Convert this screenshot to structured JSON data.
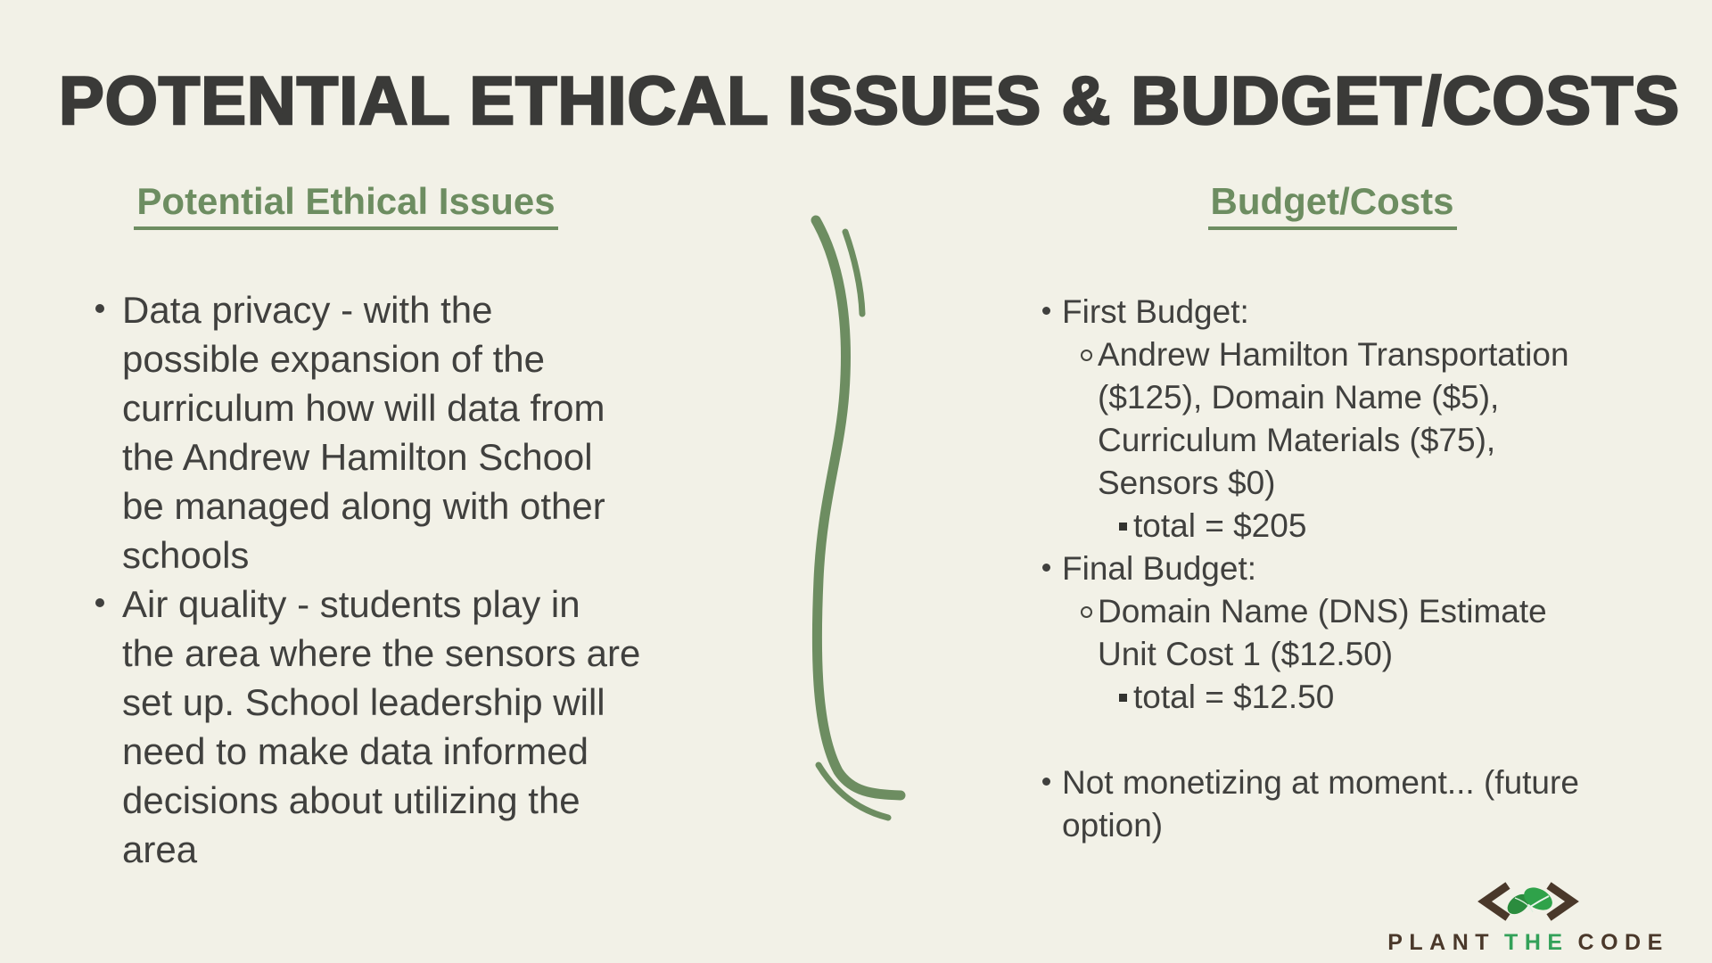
{
  "page": {
    "background": "#f2f1e7",
    "accent_green": "#6d8d61",
    "text_color": "#40403e",
    "title_color": "#3a3a38"
  },
  "title": "POTENTIAL ETHICAL ISSUES & BUDGET/COSTS",
  "left_column": {
    "heading": "Potential Ethical Issues",
    "bullets": [
      {
        "marker": "disc",
        "lines": [
          "Data privacy - with the",
          "possible expansion of the",
          "curriculum how will data from",
          "the Andrew Hamilton School",
          "be managed along with other",
          "schools"
        ]
      },
      {
        "marker": "disc",
        "lines": [
          "Air quality - students play in",
          "the area where the sensors are",
          "set up. School leadership will",
          "need to make data informed",
          "decisions about utilizing the",
          "area"
        ]
      }
    ]
  },
  "right_column": {
    "heading": "Budget/Costs",
    "items": [
      {
        "level": 1,
        "marker": "disc",
        "spacer_before": false,
        "lines": [
          "First Budget:"
        ]
      },
      {
        "level": 2,
        "marker": "circle",
        "spacer_before": false,
        "lines": [
          "Andrew Hamilton Transportation",
          "($125), Domain Name ($5),",
          "Curriculum Materials ($75),",
          "Sensors $0)"
        ]
      },
      {
        "level": 3,
        "marker": "square",
        "spacer_before": false,
        "lines": [
          "total = $205"
        ]
      },
      {
        "level": 1,
        "marker": "disc",
        "spacer_before": false,
        "lines": [
          "Final Budget:"
        ]
      },
      {
        "level": 2,
        "marker": "circle",
        "spacer_before": false,
        "lines": [
          "Domain Name (DNS) Estimate",
          "Unit Cost 1 ($12.50)"
        ]
      },
      {
        "level": 3,
        "marker": "square",
        "spacer_before": false,
        "lines": [
          "total = $12.50"
        ]
      },
      {
        "level": 1,
        "marker": "disc",
        "spacer_before": true,
        "lines": [
          "Not monetizing at moment... (future",
          "option)"
        ]
      }
    ]
  },
  "logo": {
    "word1": "PLANT",
    "word2": "THE",
    "word3": "CODE",
    "brown": "#4a382a",
    "leaf_green_dark": "#2b8c3e",
    "leaf_green_light": "#2fa24a",
    "the_green": "#33a159"
  }
}
